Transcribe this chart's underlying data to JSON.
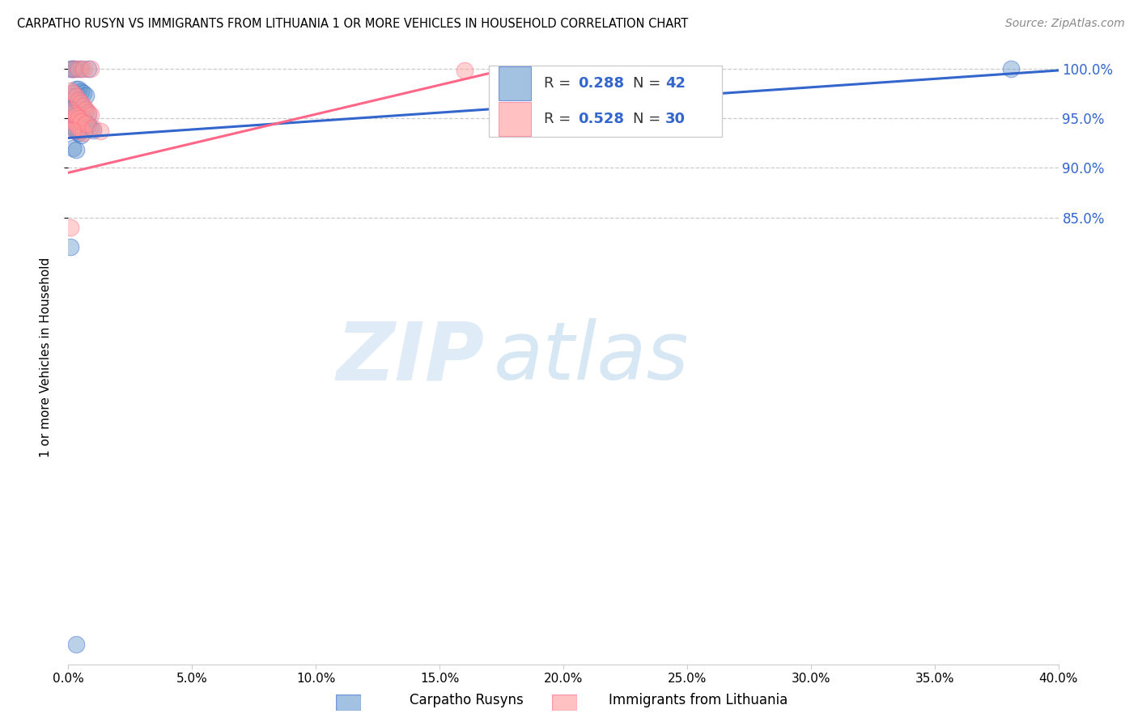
{
  "title": "CARPATHO RUSYN VS IMMIGRANTS FROM LITHUANIA 1 OR MORE VEHICLES IN HOUSEHOLD CORRELATION CHART",
  "source": "Source: ZipAtlas.com",
  "ylabel": "1 or more Vehicles in Household",
  "blue_label": "Carpatho Rusyns",
  "pink_label": "Immigrants from Lithuania",
  "blue_R": 0.288,
  "blue_N": 42,
  "pink_R": 0.528,
  "pink_N": 30,
  "xlim": [
    0.0,
    0.4
  ],
  "ylim": [
    0.4,
    1.018
  ],
  "xticks": [
    0.0,
    0.05,
    0.1,
    0.15,
    0.2,
    0.25,
    0.3,
    0.35,
    0.4
  ],
  "yticks": [
    0.85,
    0.9,
    0.95,
    1.0
  ],
  "blue_color": "#6699CC",
  "pink_color": "#FF9999",
  "blue_line_color": "#3366CC",
  "pink_line_color": "#FF6688",
  "watermark_zip": "ZIP",
  "watermark_atlas": "atlas",
  "blue_points_x": [
    0.002,
    0.003,
    0.005,
    0.008,
    0.001,
    0.002,
    0.003,
    0.004,
    0.005,
    0.006,
    0.007,
    0.001,
    0.002,
    0.003,
    0.004,
    0.005,
    0.006,
    0.007,
    0.008,
    0.001,
    0.002,
    0.003,
    0.001,
    0.002,
    0.003,
    0.004,
    0.005,
    0.001,
    0.002,
    0.003,
    0.004,
    0.005,
    0.006,
    0.007,
    0.008,
    0.009,
    0.01,
    0.002,
    0.003,
    0.381,
    0.001,
    0.003
  ],
  "blue_points_y": [
    1.0,
    1.0,
    1.0,
    1.0,
    1.0,
    1.0,
    0.979,
    0.979,
    0.977,
    0.975,
    0.973,
    0.972,
    0.969,
    0.967,
    0.965,
    0.963,
    0.96,
    0.957,
    0.954,
    0.951,
    0.948,
    0.945,
    0.942,
    0.94,
    0.937,
    0.935,
    0.933,
    0.96,
    0.958,
    0.955,
    0.953,
    0.95,
    0.948,
    0.945,
    0.943,
    0.94,
    0.938,
    0.92,
    0.918,
    1.0,
    0.82,
    0.42
  ],
  "pink_points_x": [
    0.002,
    0.004,
    0.006,
    0.009,
    0.001,
    0.002,
    0.003,
    0.004,
    0.005,
    0.006,
    0.007,
    0.008,
    0.009,
    0.001,
    0.002,
    0.003,
    0.004,
    0.005,
    0.006,
    0.001,
    0.002,
    0.003,
    0.004,
    0.005,
    0.007,
    0.01,
    0.013,
    0.16,
    0.001,
    0.002
  ],
  "pink_points_y": [
    1.0,
    1.0,
    1.0,
    1.0,
    0.978,
    0.975,
    0.972,
    0.968,
    0.965,
    0.962,
    0.959,
    0.956,
    0.953,
    0.949,
    0.947,
    0.944,
    0.941,
    0.938,
    0.935,
    0.958,
    0.955,
    0.952,
    0.95,
    0.947,
    0.944,
    0.94,
    0.937,
    0.998,
    0.84,
    0.938
  ],
  "blue_line_x": [
    0.0,
    0.4
  ],
  "blue_line_y": [
    0.93,
    0.998
  ],
  "pink_line_x": [
    0.0,
    0.175
  ],
  "pink_line_y": [
    0.895,
    0.998
  ]
}
